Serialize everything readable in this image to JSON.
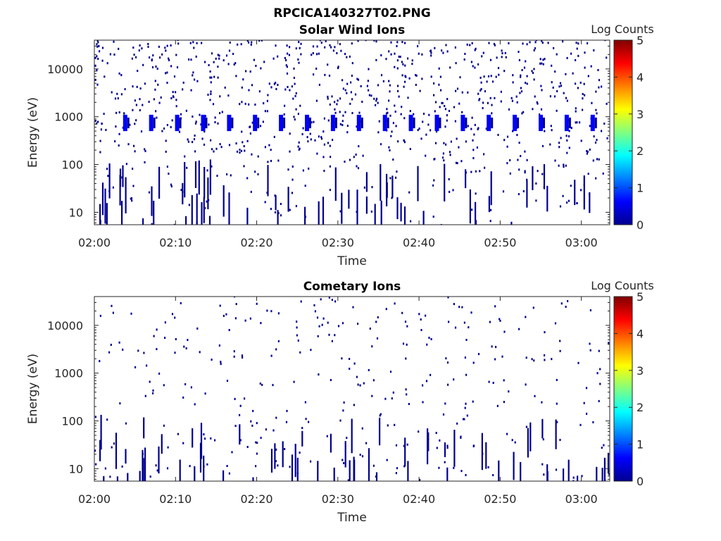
{
  "figure_title": "RPCICA140327T02.PNG",
  "colormap": [
    "#00008f",
    "#0000ff",
    "#0080ff",
    "#00ffff",
    "#80ff80",
    "#ffff00",
    "#ff8000",
    "#ff0000",
    "#800000"
  ],
  "chart_data": [
    {
      "type": "heatmap",
      "title": "Solar Wind Ions",
      "xlabel": "Time",
      "ylabel": "Energy (eV)",
      "x_ticks": [
        "02:00",
        "02:10",
        "02:20",
        "02:30",
        "02:40",
        "02:50",
        "03:00"
      ],
      "xlim_minutes": [
        0,
        63.5
      ],
      "y_scale": "log",
      "y_ticks": [
        "10",
        "100",
        "1000",
        "10000"
      ],
      "ylim": [
        5.5,
        40000
      ],
      "colorbar": {
        "label": "Log Counts",
        "ticks": [
          "0",
          "1",
          "2",
          "3",
          "4",
          "5"
        ],
        "range": [
          0,
          5
        ]
      },
      "description_values": {
        "proton_band_energy_eV": [
          500,
          1100
        ],
        "proton_band_level": 1,
        "background_level": 0,
        "band_times_minutes": [
          3.8,
          7,
          10.2,
          13.4,
          16.6,
          19.8,
          23,
          26.2,
          29.4,
          32.6,
          35.8,
          39,
          42.2,
          45.4,
          48.6,
          51.8,
          55,
          58.2,
          61.4
        ]
      }
    },
    {
      "type": "heatmap",
      "title": "Cometary Ions",
      "xlabel": "Time",
      "ylabel": "Energy (eV)",
      "x_ticks": [
        "02:00",
        "02:10",
        "02:20",
        "02:30",
        "02:40",
        "02:50",
        "03:00"
      ],
      "xlim_minutes": [
        0,
        63.5
      ],
      "y_scale": "log",
      "y_ticks": [
        "10",
        "100",
        "1000",
        "10000"
      ],
      "ylim": [
        5.5,
        40000
      ],
      "colorbar": {
        "label": "Log Counts",
        "ticks": [
          "0",
          "1",
          "2",
          "3",
          "4",
          "5"
        ],
        "range": [
          0,
          5
        ]
      },
      "description_values": {
        "background_level": 0
      }
    }
  ]
}
